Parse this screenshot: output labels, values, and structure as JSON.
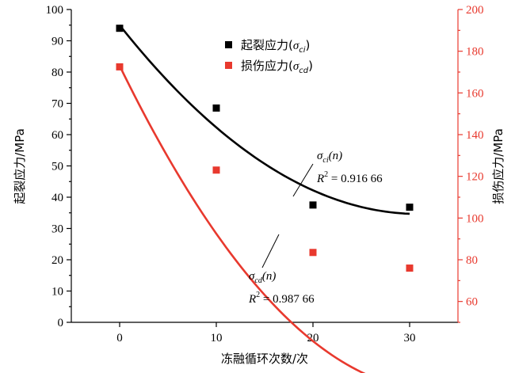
{
  "chart_data": {
    "type": "scatter",
    "xlabel": "冻融循环次数/次",
    "ylabel_left": "起裂应力/MPa",
    "ylabel_right": "损伤应力/MPa",
    "x_ticks": [
      "0",
      "10",
      "20",
      "30"
    ],
    "xlim": [
      -5,
      35
    ],
    "ylim_left": [
      0,
      100
    ],
    "ylim_right": [
      50,
      200
    ],
    "yticks_left": [
      "0",
      "10",
      "20",
      "30",
      "40",
      "50",
      "60",
      "70",
      "80",
      "90",
      "100"
    ],
    "yticks_right": [
      "60",
      "80",
      "100",
      "120",
      "140",
      "160",
      "180",
      "200"
    ],
    "series": [
      {
        "name_prefix": "起裂应力(",
        "name_symbol": "σ",
        "name_sub": "ci",
        "name_suffix": ")",
        "color": "#000000",
        "axis": "left",
        "marker": "square",
        "x": [
          0,
          10,
          20,
          30
        ],
        "y": [
          94,
          68.5,
          37.5,
          36.8
        ],
        "fit": {
          "x": [
            0,
            30
          ],
          "coeffs": [
            95.0,
            -3.9,
            0.063
          ]
        }
      },
      {
        "name_prefix": "损伤应力(",
        "name_symbol": "σ",
        "name_sub": "cd",
        "name_suffix": ")",
        "color": "#e8392e",
        "axis": "right",
        "marker": "square",
        "x": [
          0,
          10,
          20,
          30
        ],
        "y": [
          172.5,
          123,
          83.5,
          76
        ],
        "fit": {
          "x": [
            0,
            30
          ],
          "coeffs": [
            173.0,
            -9.5,
            0.145
          ]
        }
      }
    ],
    "annotations": [
      {
        "fn_symbol": "σ",
        "fn_sub": "ci",
        "fn_arg": "(n)",
        "r2_label": "R",
        "r2_sup": "2",
        "r2_value": " = 0.916 66"
      },
      {
        "fn_symbol": "σ",
        "fn_sub": "cd",
        "fn_arg": "(n)",
        "r2_label": "R",
        "r2_sup": "2",
        "r2_value": " = 0.987 66"
      }
    ]
  }
}
